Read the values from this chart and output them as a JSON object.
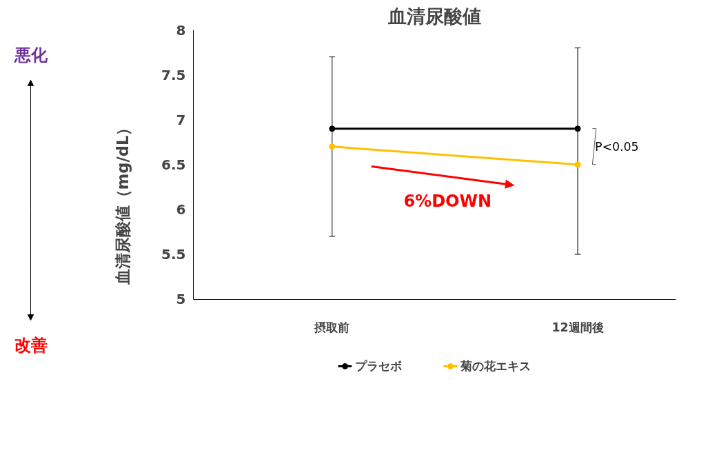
{
  "chart_data": {
    "type": "line",
    "title": "血清尿酸値",
    "ylabel": "血清尿酸値（mg/dL）",
    "categories": [
      "摂取前",
      "12週間後"
    ],
    "series": [
      {
        "name": "プラセボ",
        "color": "#000000",
        "values": [
          6.9,
          6.9
        ],
        "errors": [
          [
            5.7,
            7.7
          ],
          [
            5.5,
            7.8
          ]
        ]
      },
      {
        "name": "菊の花エキス",
        "color": "#ffc000",
        "values": [
          6.7,
          6.5
        ]
      }
    ],
    "ylim": [
      5,
      8
    ],
    "yticks": [
      5,
      5.5,
      6,
      6.5,
      7,
      7.5,
      8
    ],
    "annotations": [
      "悪化",
      "改善",
      "6%DOWN",
      {
        "text": "P<0.05",
        "x": "12週間後",
        "y": 6.7
      }
    ],
    "marker": "circle",
    "line_style": "solid",
    "grid": false,
    "legend": "bottom"
  }
}
